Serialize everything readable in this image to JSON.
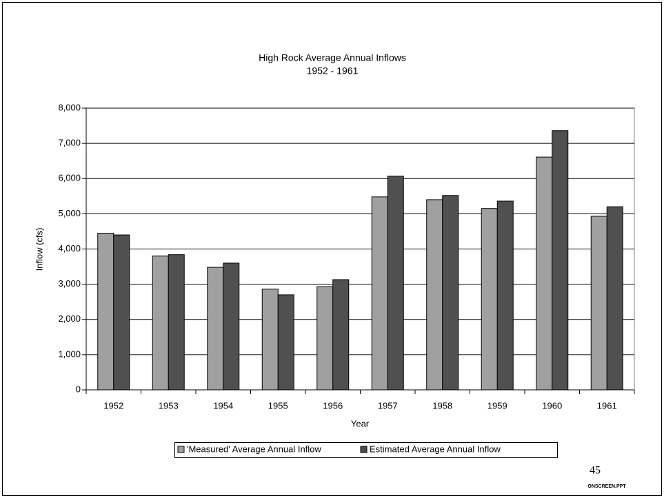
{
  "chart_data": {
    "type": "bar",
    "title": "High Rock Average Annual Inflows",
    "subtitle": "1952 - 1961",
    "x_label": "Year",
    "y_label": "Inflow (cfs)",
    "categories": [
      "1952",
      "1953",
      "1954",
      "1955",
      "1956",
      "1957",
      "1958",
      "1959",
      "1960",
      "1961"
    ],
    "series": [
      {
        "name": "'Measured' Average Annual Inflow",
        "color": "#a0a0a0",
        "values": [
          4450,
          3800,
          3480,
          2860,
          2930,
          5480,
          5400,
          5150,
          6610,
          4930
        ]
      },
      {
        "name": "Estimated Average Annual Inflow",
        "color": "#505050",
        "values": [
          4400,
          3840,
          3600,
          2700,
          3130,
          6070,
          5520,
          5360,
          7360,
          5200
        ]
      }
    ],
    "ylim": [
      0,
      8000
    ],
    "yticks": [
      0,
      {
        "value": 1000,
        "label": "1,000"
      },
      {
        "value": 2000,
        "label": "2,000"
      },
      {
        "value": 3000,
        "label": "3,000"
      },
      {
        "value": 4000,
        "label": "4,000"
      },
      {
        "value": 5000,
        "label": "5,000"
      },
      {
        "value": 6000,
        "label": "6,000"
      },
      {
        "value": 7000,
        "label": "7,000"
      },
      {
        "value": 8000,
        "label": "8,000"
      }
    ],
    "grid": true,
    "legend": "bottom"
  },
  "page_number": "45",
  "footer": "ONSCREEN.PPT"
}
